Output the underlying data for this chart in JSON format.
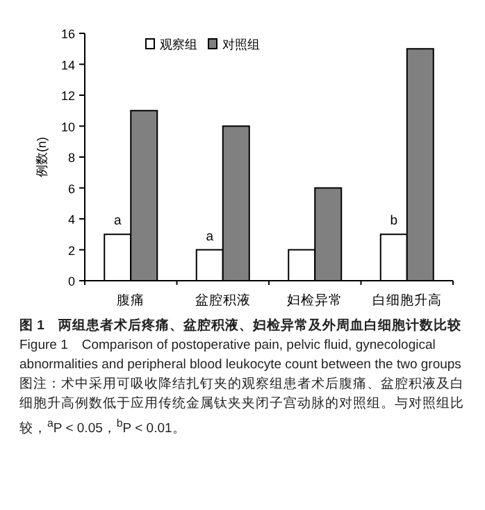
{
  "chart_data": {
    "type": "bar",
    "title": "图 1　两组患者术后疼痛、盆腔积液、妇检异常及外周血白细胞计数比较",
    "subtitle": "Figure 1　Comparison of postoperative pain, pelvic fluid, gynecological abnormalities and peripheral blood leukocyte count between the two groups",
    "ylabel": "例数(n)",
    "categories": [
      "腹痛",
      "盆腔积液",
      "妇检异常",
      "白细胞升高"
    ],
    "series": [
      {
        "name": "观察组",
        "color": "#ffffff",
        "values": [
          3,
          2,
          2,
          3
        ]
      },
      {
        "name": "对照组",
        "color": "#808080",
        "values": [
          11,
          10,
          6,
          15
        ]
      }
    ],
    "ylim": [
      0,
      16
    ],
    "yticks": [
      0,
      2,
      4,
      6,
      8,
      10,
      12,
      14,
      16
    ],
    "grid": false,
    "legend": "top",
    "annotations": [
      {
        "text": "a",
        "x": "腹痛",
        "y": 3
      },
      {
        "text": "a",
        "x": "盆腔积液",
        "y": 2
      },
      {
        "text": "b",
        "x": "白细胞升高",
        "y": 3
      },
      "图注：术中采用可吸收降结扎钉夹的观察组患者术后腹痛、盆腔积液及白细胞升高例数低于应用传统金属钛夹夹闭子宫动脉的对照组。与对照组比较，$^{a}$P < 0.05，$^{b}$P < 0.01。"
    ]
  }
}
